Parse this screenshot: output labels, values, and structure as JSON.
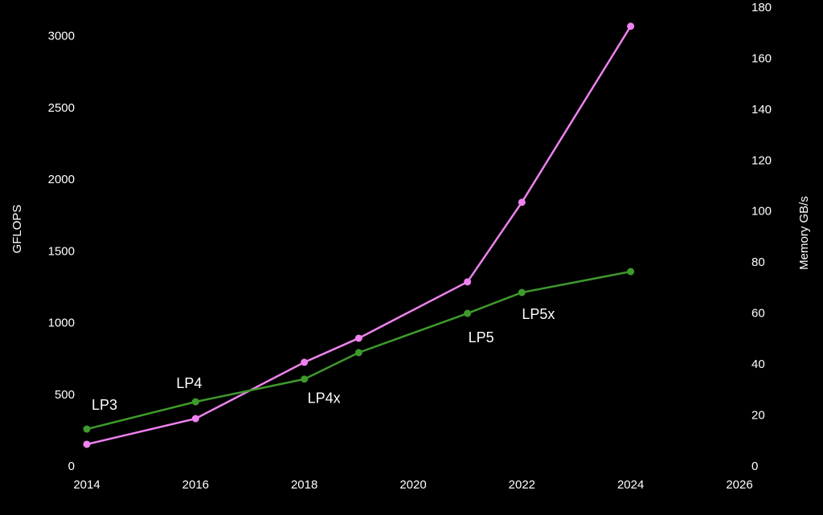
{
  "chart_data": {
    "type": "line",
    "ylabel": "GFLOPS",
    "y2label": "Memory GB/s",
    "x": [
      2014,
      2016,
      2018,
      2019,
      2021,
      2022,
      2024
    ],
    "xlim": [
      2014,
      2026
    ],
    "xticks": [
      2014,
      2016,
      2018,
      2020,
      2022,
      2024,
      2026
    ],
    "ylim": [
      0,
      3200
    ],
    "yticks": [
      0,
      500,
      1000,
      1500,
      2000,
      2500,
      3000
    ],
    "y2lim": [
      0,
      180
    ],
    "y2ticks": [
      0,
      20,
      40,
      60,
      80,
      100,
      120,
      140,
      160,
      180
    ],
    "series": [
      {
        "color": "#ee82ee",
        "values": [
          157,
          336,
          729,
          897,
          1290,
          1845,
          3073
        ]
      },
      {
        "color": "#3e9a2c",
        "axis": "y2",
        "values": [
          14.8,
          25.5,
          34.4,
          44.8,
          60.2,
          68.4,
          76.6
        ]
      }
    ],
    "annotations": [
      {
        "text": "LP3",
        "x": 2014
      },
      {
        "text": "LP4",
        "x": 2016
      },
      {
        "text": "LP4x",
        "x": 2018
      },
      {
        "text": "LP5",
        "x": 2021
      },
      {
        "text": "LP5x",
        "x": 2022
      }
    ]
  }
}
